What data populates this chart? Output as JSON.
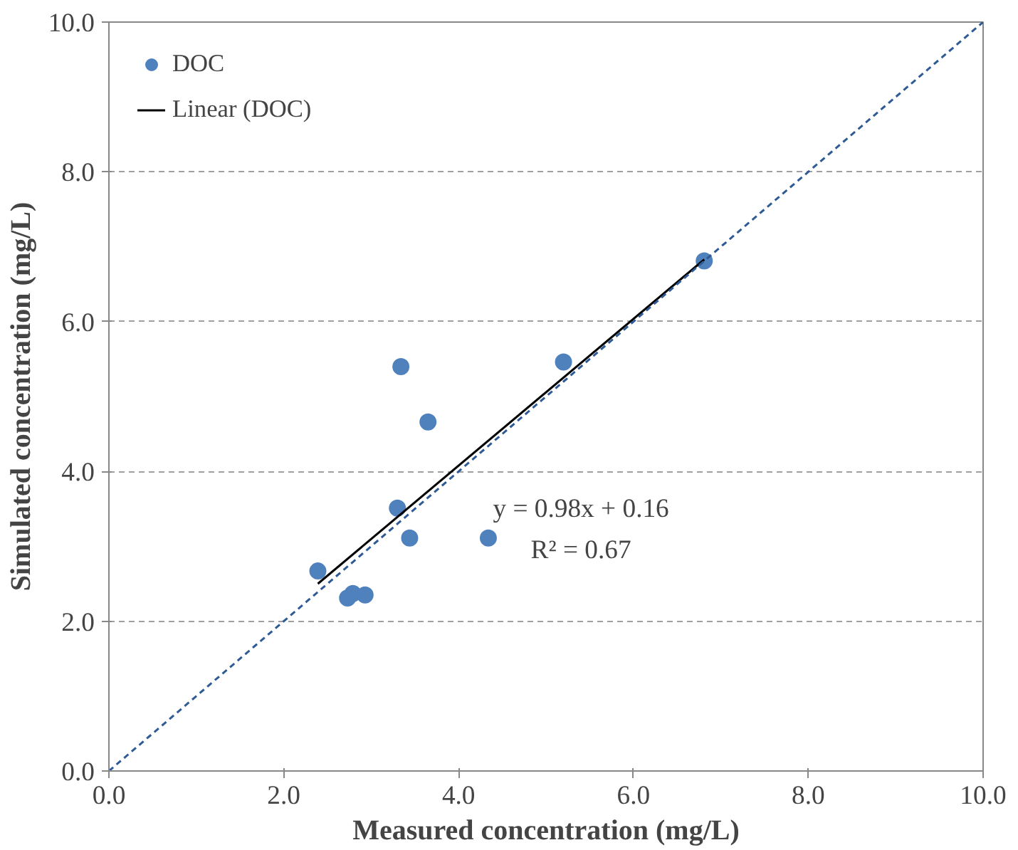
{
  "chart_data": {
    "type": "scatter",
    "xlabel": "Measured concentration (mg/L)",
    "ylabel": "Simulated concentration (mg/L)",
    "xlim": [
      0,
      10
    ],
    "ylim": [
      0,
      10
    ],
    "xticks": [
      {
        "value": 0,
        "label": "0.0"
      },
      {
        "value": 2,
        "label": "2.0"
      },
      {
        "value": 4,
        "label": "4.0"
      },
      {
        "value": 6,
        "label": "6.0"
      },
      {
        "value": 8,
        "label": "8.0"
      },
      {
        "value": 10,
        "label": "10.0"
      }
    ],
    "yticks": [
      {
        "value": 0,
        "label": "0.0"
      },
      {
        "value": 2,
        "label": "2.0"
      },
      {
        "value": 4,
        "label": "4.0"
      },
      {
        "value": 6,
        "label": "6.0"
      },
      {
        "value": 8,
        "label": "8.0"
      },
      {
        "value": 10,
        "label": "10.0"
      }
    ],
    "grid": "y",
    "legend": "top left",
    "series": [
      {
        "name": "DOC",
        "marker": "circle",
        "color": "#4f81bd",
        "x": [
          2.39,
          2.73,
          2.79,
          2.93,
          3.3,
          3.34,
          3.44,
          3.65,
          4.34,
          5.2,
          6.81
        ],
        "values": [
          2.67,
          2.31,
          2.37,
          2.35,
          3.51,
          5.4,
          3.11,
          4.66,
          3.11,
          5.46,
          6.81
        ]
      },
      {
        "name": "Linear (DOC)",
        "type": "line",
        "marker": "none",
        "color": "#000000",
        "x": [
          2.39,
          6.81
        ],
        "values": [
          2.5,
          6.83
        ]
      },
      {
        "type": "line",
        "marker": "none",
        "color": "#2e5a96",
        "line_style": "dashed",
        "x": [
          0,
          10
        ],
        "values": [
          0,
          10
        ]
      }
    ],
    "annotations": [
      "y = 0.98x + 0.16",
      "R² = 0.67"
    ]
  }
}
